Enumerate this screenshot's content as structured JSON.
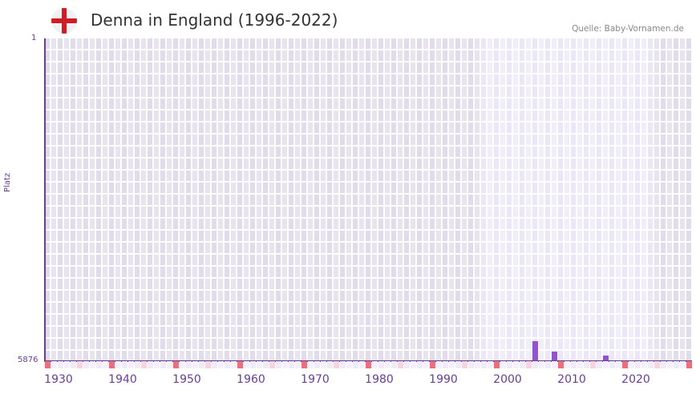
{
  "header": {
    "flag_icon": "england-flag-icon",
    "title": "Denna in England (1996-2022)",
    "source": "Quelle: Baby-Vornamen.de"
  },
  "axis": {
    "y_title": "Platz",
    "y_top": "1",
    "y_bottom": "5876",
    "x_ticks": [
      "1930",
      "1940",
      "1950",
      "1960",
      "1970",
      "1980",
      "1990",
      "2000",
      "2010",
      "2020"
    ]
  },
  "colors": {
    "bar": "#8e56c8",
    "axis": "#6a3d9a",
    "decade_mark": "#e8707a",
    "halfdecade_mark": "#f5d5de",
    "bg_outside": "#e6e2ef",
    "bg_inside": "#efebf9"
  },
  "chart_data": {
    "type": "bar",
    "title": "Denna in England (1996-2022)",
    "xlabel": "",
    "ylabel": "Platz",
    "ylim": [
      5876,
      1
    ],
    "y_inverted": true,
    "x_range": [
      1928,
      2028
    ],
    "highlight_range": [
      1996,
      2022
    ],
    "categories": [
      2004,
      2007,
      2015
    ],
    "values": [
      5528,
      5711,
      5784
    ],
    "x_tick_labels": [
      "1930",
      "1940",
      "1950",
      "1960",
      "1970",
      "1980",
      "1990",
      "2000",
      "2010",
      "2020"
    ],
    "grid": true,
    "legend": null
  }
}
